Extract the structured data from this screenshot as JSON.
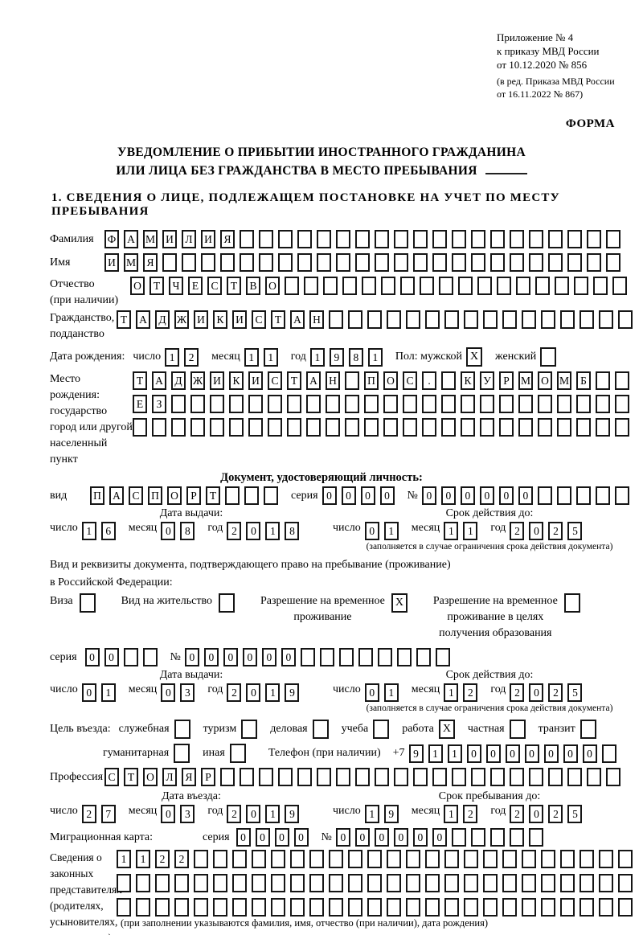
{
  "header": {
    "appendix": [
      "Приложение № 4",
      "к приказу МВД России",
      "от 10.12.2020 № 856"
    ],
    "edition": [
      "(в ред. Приказа МВД России",
      "от 16.11.2022 № 867)"
    ],
    "form_label": "ФОРМА",
    "title_line1": "УВЕДОМЛЕНИЕ О ПРИБЫТИИ ИНОСТРАННОГО ГРАЖДАНИНА",
    "title_line2": "ИЛИ ЛИЦА БЕЗ ГРАЖДАНСТВА В МЕСТО ПРЕБЫВАНИЯ",
    "section1_heading": "1. СВЕДЕНИЯ О ЛИЦЕ, ПОДЛЕЖАЩЕМ ПОСТАНОВКЕ НА УЧЕТ ПО МЕСТУ ПРЕБЫВАНИЯ"
  },
  "labels": {
    "surname": "Фамилия",
    "name": "Имя",
    "patronymic_l1": "Отчество",
    "patronymic_l2": "(при наличии)",
    "citizenship_l1": "Гражданство,",
    "citizenship_l2": "подданство",
    "birth_date": "Дата рождения:",
    "day": "число",
    "month": "месяц",
    "year": "год",
    "gender": "Пол: мужской",
    "female": "женский",
    "birth_place_l1": "Место рождения:",
    "birth_place_l2": "государство",
    "birth_place_l3": "город или другой",
    "birth_place_l4": "населенный пункт",
    "identity_doc_heading": "Документ, удостоверяющий личность:",
    "doc_type": "вид",
    "series": "серия",
    "number_sign": "№",
    "issue_date": "Дата выдачи:",
    "valid_until": "Срок действия до:",
    "validity_note": "(заполняется в случае ограничения срока действия документа)",
    "residence_doc_line1": "Вид и реквизиты документа, подтверждающего право на пребывание (проживание)",
    "residence_doc_line2": "в Российской Федерации:",
    "visa": "Виза",
    "residence_permit": "Вид на жительство",
    "temp_residence_l1": "Разрешение на временное",
    "temp_residence_l2": "проживание",
    "temp_residence_edu_l1": "Разрешение на временное",
    "temp_residence_edu_l2": "проживание в целях",
    "temp_residence_edu_l3": "получения образования",
    "entry_purpose": "Цель въезда:",
    "phone": "Телефон (при наличии)",
    "phone_prefix": "+7",
    "profession": "Профессия",
    "entry_date": "Дата въезда:",
    "stay_until": "Срок пребывания до:",
    "migration_card": "Миграционная карта:",
    "legal_reps_l1": "Сведения о",
    "legal_reps_l2": "законных",
    "legal_reps_l3": "представителях",
    "legal_reps_l4": "(родителях,",
    "legal_reps_l5": "усыновителях,",
    "legal_reps_l6": "попечителях)",
    "legal_reps_note": "(при заполнении указываются фамилия, имя, отчество (при наличии), дата рождения)"
  },
  "purpose_items": [
    {
      "label": "служебная",
      "checked": false
    },
    {
      "label": "туризм",
      "checked": false
    },
    {
      "label": "деловая",
      "checked": false
    },
    {
      "label": "учеба",
      "checked": false
    },
    {
      "label": "работа",
      "checked": true
    },
    {
      "label": "частная",
      "checked": false
    },
    {
      "label": "транзит",
      "checked": false
    }
  ],
  "purpose_items2": [
    {
      "label": "гуманитарная",
      "checked": false
    },
    {
      "label": "иная",
      "checked": false
    }
  ],
  "values": {
    "surname": {
      "value": "ФАМИЛИЯ",
      "count": 27
    },
    "name": {
      "value": "ИМЯ",
      "count": 27
    },
    "patronymic": {
      "value": "ОТЧЕСТВО",
      "count": 26
    },
    "citizenship": {
      "value": "ТАДЖИКИСТАН",
      "count": 27
    },
    "birth_day": {
      "value": "12",
      "count": 2
    },
    "birth_month": {
      "value": "11",
      "count": 2
    },
    "birth_year": {
      "value": "1981",
      "count": 4
    },
    "male_check": {
      "value": "X",
      "count": 1
    },
    "female_check": {
      "value": "",
      "count": 1
    },
    "birthplace_row1": {
      "value": "ТАДЖИКИСТАН ПОС. КУРМОМБ",
      "count": 26
    },
    "birthplace_row2": {
      "value": "ЕЗ",
      "count": 26
    },
    "birthplace_row3": {
      "value": "",
      "count": 26
    },
    "id_type": {
      "value": "ПАСПОРТ",
      "count": 10
    },
    "id_series": {
      "value": "0000",
      "count": 4
    },
    "id_number": {
      "value": "000000",
      "count": 11
    },
    "id_issue": {
      "day": "16",
      "month": "08",
      "year": "2018"
    },
    "id_valid": {
      "day": "01",
      "month": "11",
      "year": "2025"
    },
    "visa_check": {
      "value": "",
      "count": 1
    },
    "residence_permit_check": {
      "value": "",
      "count": 1
    },
    "temp_residence_check": {
      "value": "X",
      "count": 1
    },
    "temp_residence_edu_check": {
      "value": "",
      "count": 1
    },
    "res_series": {
      "value": "00",
      "count": 4
    },
    "res_number": {
      "value": "000000",
      "count": 14
    },
    "res_issue": {
      "day": "01",
      "month": "03",
      "year": "2019"
    },
    "res_valid": {
      "day": "01",
      "month": "12",
      "year": "2025"
    },
    "phone": {
      "value": "9110000000",
      "count": 11
    },
    "profession": {
      "value": "СТОЛЯР",
      "count": 27
    },
    "entry": {
      "day": "27",
      "month": "03",
      "year": "2019"
    },
    "stay": {
      "day": "19",
      "month": "12",
      "year": "2025"
    },
    "mig_series": {
      "value": "0000",
      "count": 4
    },
    "mig_number": {
      "value": "000000",
      "count": 11
    },
    "legal_row1": {
      "value": "1122",
      "count": 27
    },
    "legal_row2": {
      "value": "",
      "count": 27
    },
    "legal_row3": {
      "value": "",
      "count": 27
    }
  }
}
